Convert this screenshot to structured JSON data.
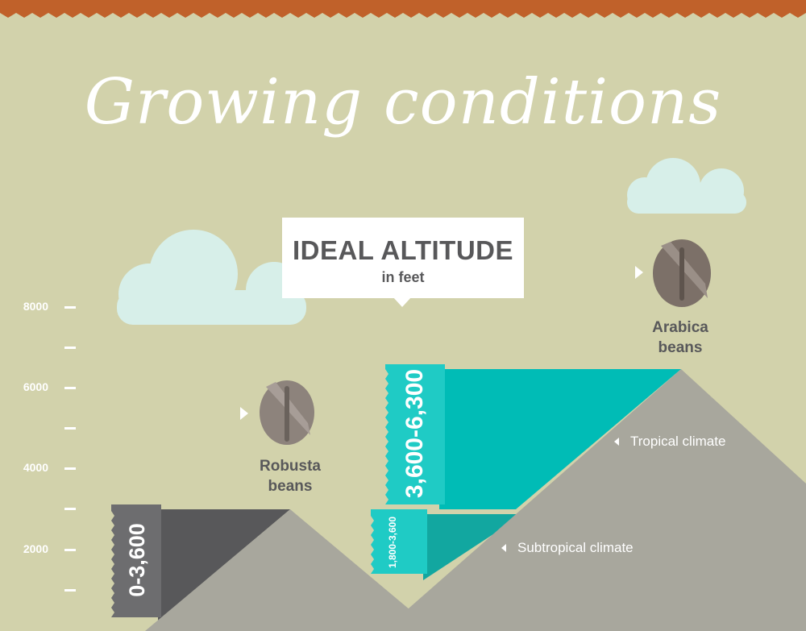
{
  "title": "Growing conditions",
  "header": {
    "heading": "IDEAL ALTITUDE",
    "unit": "in feet"
  },
  "axis": {
    "labels": [
      "8000",
      "6000",
      "4000",
      "2000"
    ]
  },
  "robusta": {
    "line1": "Robusta",
    "line2": "beans",
    "range": "0-3,600"
  },
  "arabica": {
    "line1": "Arabica",
    "line2": "beans",
    "tropical_range": "3,600-6,300",
    "subtropical_range": "1,800-3,600"
  },
  "climates": {
    "tropical": "Tropical climate",
    "subtropical": "Subtropical climate"
  },
  "colors": {
    "background": "#d2d2ab",
    "zigzag": "#c0612a",
    "teal": "#1fcbc5",
    "teal_dark": "#12a7a0",
    "mountain": "#a8a79d",
    "dark_gray": "#58585a",
    "cloud": "#d7efe9"
  }
}
